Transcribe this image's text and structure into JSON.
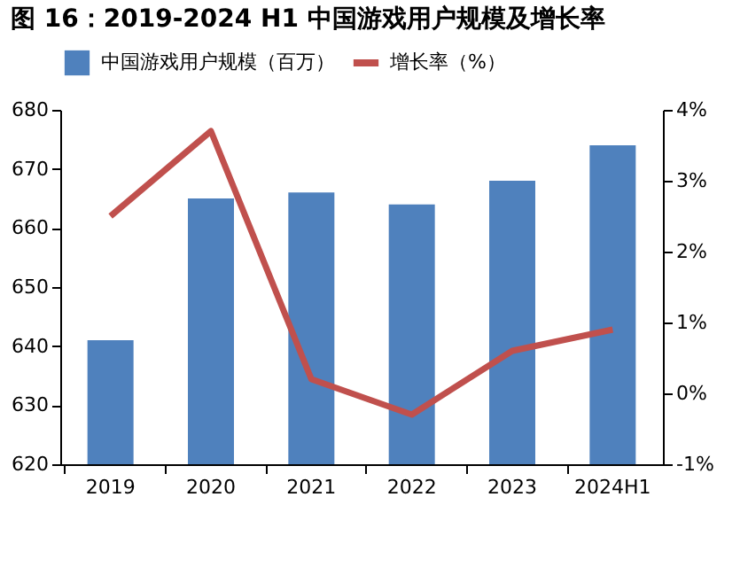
{
  "chart_data": {
    "type": "bar",
    "title": "图 16：2019-2024 H1 中国游戏用户规模及增长率",
    "categories": [
      "2019",
      "2020",
      "2021",
      "2022",
      "2023",
      "2024H1"
    ],
    "series": [
      {
        "name": "中国游戏用户规模（百万）",
        "color": "#4f81bd",
        "values": [
          641,
          665,
          666,
          664,
          668,
          674
        ]
      },
      {
        "name": "增长率（%）",
        "type": "line",
        "axis": "y2",
        "color": "#c0504d",
        "values": [
          2.5,
          3.7,
          0.2,
          -0.3,
          0.6,
          0.9
        ]
      }
    ],
    "ylim": [
      620,
      680
    ],
    "yticks": [
      620,
      630,
      640,
      650,
      660,
      670,
      680
    ],
    "y2lim": [
      -1,
      4
    ],
    "y2ticks": [
      {
        "value": -1,
        "label": "-1%"
      },
      {
        "value": 0,
        "label": "0%"
      },
      {
        "value": 1,
        "label": "1%"
      },
      {
        "value": 2,
        "label": "2%"
      },
      {
        "value": 3,
        "label": "3%"
      },
      {
        "value": 4,
        "label": "4%"
      }
    ],
    "grid": false,
    "legend": "top",
    "marker": "none",
    "line_style": "solid"
  }
}
